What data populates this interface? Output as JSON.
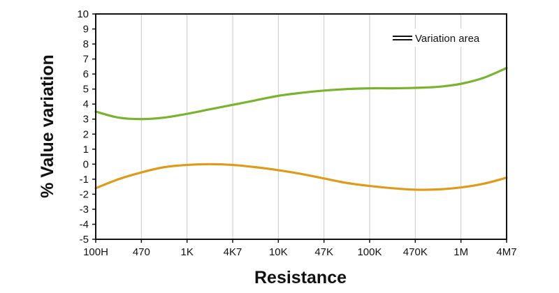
{
  "chart_data": {
    "type": "line",
    "xlabel": "Resistance",
    "ylabel": "% Value variation",
    "categories": [
      "100H",
      "470",
      "1K",
      "4K7",
      "10K",
      "47K",
      "100K",
      "470K",
      "1M",
      "4M7"
    ],
    "ylim": [
      -5,
      10
    ],
    "yticks": [
      10,
      9,
      8,
      7,
      6,
      5,
      4,
      3,
      2,
      1,
      0,
      -1,
      -2,
      -3,
      -4,
      -5
    ],
    "grid": "vertical",
    "legend": {
      "label": "Variation area",
      "placement": "top-right"
    },
    "series": [
      {
        "color": "#7ab32e",
        "x": [
          0,
          0.5,
          1,
          1.5,
          2,
          2.5,
          3,
          3.5,
          4,
          4.5,
          5,
          5.5,
          6,
          6.5,
          7,
          7.5,
          8,
          8.5,
          9
        ],
        "values": [
          3.5,
          3.1,
          3.0,
          3.1,
          3.35,
          3.65,
          3.95,
          4.25,
          4.55,
          4.75,
          4.9,
          5.0,
          5.05,
          5.05,
          5.08,
          5.15,
          5.35,
          5.75,
          6.4
        ]
      },
      {
        "color": "#e09a1a",
        "x": [
          0,
          0.5,
          1,
          1.5,
          2,
          2.5,
          3,
          3.5,
          4,
          4.5,
          5,
          5.5,
          6,
          6.5,
          7,
          7.5,
          8,
          8.5,
          9
        ],
        "values": [
          -1.6,
          -1.0,
          -0.55,
          -0.2,
          -0.05,
          0.0,
          -0.05,
          -0.2,
          -0.4,
          -0.65,
          -0.95,
          -1.25,
          -1.45,
          -1.6,
          -1.7,
          -1.68,
          -1.55,
          -1.3,
          -0.9
        ]
      }
    ]
  }
}
